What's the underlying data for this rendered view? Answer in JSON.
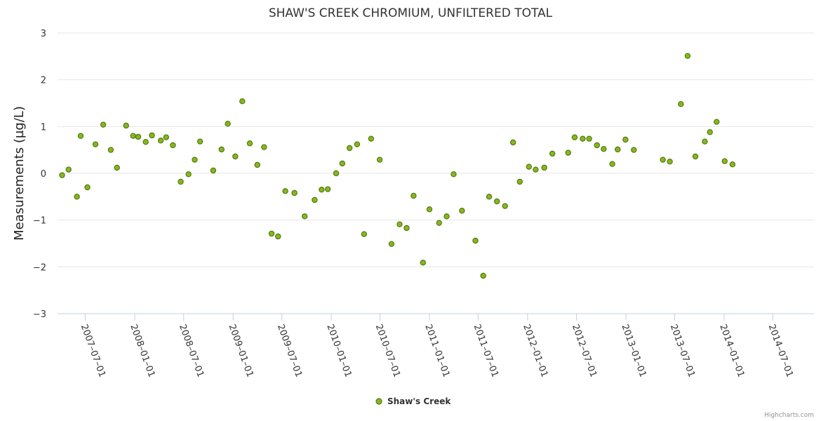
{
  "chart_data": {
    "type": "scatter",
    "title": "SHAW'S CREEK CHROMIUM, UNFILTERED TOTAL",
    "ylabel": "Measurements (µg/L)",
    "xlabel": "",
    "ylim": [
      -3,
      3
    ],
    "yticks": [
      -3,
      -2,
      -1,
      0,
      1,
      2,
      3
    ],
    "xticks": [
      "2007-07-01",
      "2008-01-01",
      "2008-07-01",
      "2009-01-01",
      "2009-07-01",
      "2010-01-01",
      "2010-07-01",
      "2011-01-01",
      "2011-07-01",
      "2012-01-01",
      "2012-07-01",
      "2013-01-01",
      "2013-07-01",
      "2014-01-01",
      "2014-07-01"
    ],
    "xlim": [
      "2007-03-20",
      "2014-12-01"
    ],
    "grid": true,
    "legend_position": "bottom-center",
    "marker_color": "#8ab61f",
    "marker_stroke": "#4e7a0d",
    "series": [
      {
        "name": "Shaw's Creek",
        "points": [
          {
            "x": "2007-04-06",
            "y": -0.04
          },
          {
            "x": "2007-04-30",
            "y": 0.08
          },
          {
            "x": "2007-05-31",
            "y": -0.5
          },
          {
            "x": "2007-06-14",
            "y": 0.8
          },
          {
            "x": "2007-07-09",
            "y": -0.3
          },
          {
            "x": "2007-08-08",
            "y": 0.62
          },
          {
            "x": "2007-09-06",
            "y": 1.04
          },
          {
            "x": "2007-10-04",
            "y": 0.5
          },
          {
            "x": "2007-10-27",
            "y": 0.12
          },
          {
            "x": "2007-11-30",
            "y": 1.02
          },
          {
            "x": "2007-12-26",
            "y": 0.8
          },
          {
            "x": "2008-01-14",
            "y": 0.78
          },
          {
            "x": "2008-02-11",
            "y": 0.67
          },
          {
            "x": "2008-03-05",
            "y": 0.81
          },
          {
            "x": "2008-04-07",
            "y": 0.7
          },
          {
            "x": "2008-04-27",
            "y": 0.77
          },
          {
            "x": "2008-05-22",
            "y": 0.6
          },
          {
            "x": "2008-06-20",
            "y": -0.18
          },
          {
            "x": "2008-07-19",
            "y": -0.02
          },
          {
            "x": "2008-08-11",
            "y": 0.29
          },
          {
            "x": "2008-08-31",
            "y": 0.68
          },
          {
            "x": "2008-10-19",
            "y": 0.06
          },
          {
            "x": "2008-11-19",
            "y": 0.51
          },
          {
            "x": "2008-12-12",
            "y": 1.06
          },
          {
            "x": "2009-01-09",
            "y": 0.36
          },
          {
            "x": "2009-02-04",
            "y": 1.54
          },
          {
            "x": "2009-03-04",
            "y": 0.64
          },
          {
            "x": "2009-04-01",
            "y": 0.18
          },
          {
            "x": "2009-04-26",
            "y": 0.56
          },
          {
            "x": "2009-05-24",
            "y": -1.29
          },
          {
            "x": "2009-06-17",
            "y": -1.35
          },
          {
            "x": "2009-07-14",
            "y": -0.38
          },
          {
            "x": "2009-08-17",
            "y": -0.42
          },
          {
            "x": "2009-09-24",
            "y": -0.92
          },
          {
            "x": "2009-10-31",
            "y": -0.57
          },
          {
            "x": "2009-11-26",
            "y": -0.35
          },
          {
            "x": "2009-12-19",
            "y": -0.34
          },
          {
            "x": "2010-01-19",
            "y": 0.0
          },
          {
            "x": "2010-02-11",
            "y": 0.21
          },
          {
            "x": "2010-03-10",
            "y": 0.54
          },
          {
            "x": "2010-04-07",
            "y": 0.62
          },
          {
            "x": "2010-05-03",
            "y": -1.3
          },
          {
            "x": "2010-05-29",
            "y": 0.74
          },
          {
            "x": "2010-06-30",
            "y": 0.29
          },
          {
            "x": "2010-08-13",
            "y": -1.51
          },
          {
            "x": "2010-09-12",
            "y": -1.09
          },
          {
            "x": "2010-10-08",
            "y": -1.17
          },
          {
            "x": "2010-11-03",
            "y": -0.48
          },
          {
            "x": "2010-12-08",
            "y": -1.91
          },
          {
            "x": "2011-01-01",
            "y": -0.77
          },
          {
            "x": "2011-02-06",
            "y": -1.06
          },
          {
            "x": "2011-03-06",
            "y": -0.92
          },
          {
            "x": "2011-04-01",
            "y": -0.02
          },
          {
            "x": "2011-05-02",
            "y": -0.8
          },
          {
            "x": "2011-06-21",
            "y": -1.44
          },
          {
            "x": "2011-07-20",
            "y": -2.19
          },
          {
            "x": "2011-08-11",
            "y": -0.5
          },
          {
            "x": "2011-09-09",
            "y": -0.6
          },
          {
            "x": "2011-10-09",
            "y": -0.7
          },
          {
            "x": "2011-11-08",
            "y": 0.66
          },
          {
            "x": "2011-12-03",
            "y": -0.18
          },
          {
            "x": "2012-01-06",
            "y": 0.14
          },
          {
            "x": "2012-01-31",
            "y": 0.08
          },
          {
            "x": "2012-03-03",
            "y": 0.12
          },
          {
            "x": "2012-04-02",
            "y": 0.42
          },
          {
            "x": "2012-05-31",
            "y": 0.44
          },
          {
            "x": "2012-06-24",
            "y": 0.77
          },
          {
            "x": "2012-07-24",
            "y": 0.74
          },
          {
            "x": "2012-08-17",
            "y": 0.74
          },
          {
            "x": "2012-09-15",
            "y": 0.6
          },
          {
            "x": "2012-10-10",
            "y": 0.52
          },
          {
            "x": "2012-11-11",
            "y": 0.2
          },
          {
            "x": "2012-12-01",
            "y": 0.51
          },
          {
            "x": "2012-12-30",
            "y": 0.72
          },
          {
            "x": "2013-01-30",
            "y": 0.5
          },
          {
            "x": "2013-05-18",
            "y": 0.29
          },
          {
            "x": "2013-06-13",
            "y": 0.25
          },
          {
            "x": "2013-07-24",
            "y": 1.48
          },
          {
            "x": "2013-08-18",
            "y": 2.51
          },
          {
            "x": "2013-09-16",
            "y": 0.36
          },
          {
            "x": "2013-10-21",
            "y": 0.68
          },
          {
            "x": "2013-11-09",
            "y": 0.88
          },
          {
            "x": "2013-12-04",
            "y": 1.1
          },
          {
            "x": "2014-01-03",
            "y": 0.26
          },
          {
            "x": "2014-02-01",
            "y": 0.19
          }
        ]
      }
    ],
    "credits": "Highcharts.com"
  }
}
